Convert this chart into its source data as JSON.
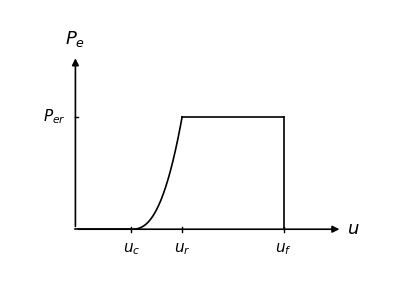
{
  "background_color": "#ffffff",
  "line_color": "#000000",
  "u_c": 0.22,
  "u_r": 0.42,
  "u_f": 0.82,
  "P_er": 0.55,
  "x_tick_labels": [
    "u_c",
    "u_r",
    "u_f"
  ],
  "figsize": [
    4.0,
    2.92
  ],
  "dpi": 100
}
